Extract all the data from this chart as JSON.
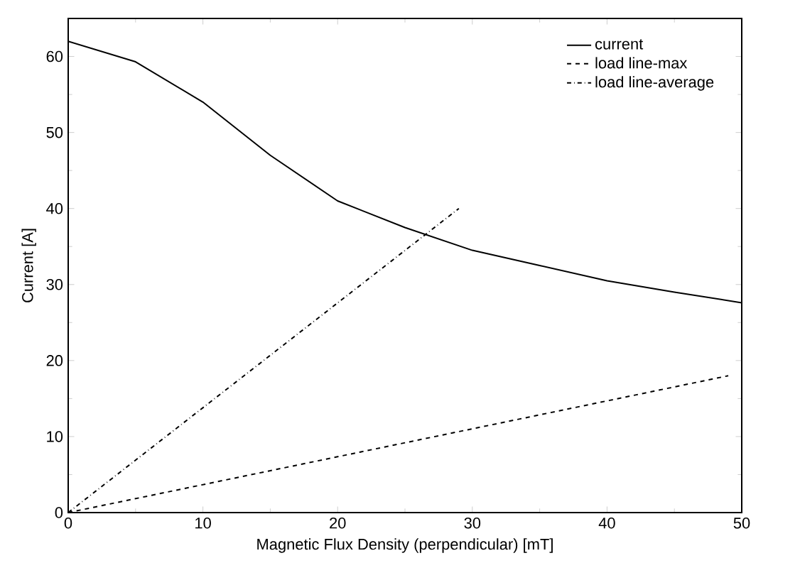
{
  "chart_data": {
    "type": "line",
    "xlabel": "Magnetic Flux Density (perpendicular) [mT]",
    "ylabel": "Current [A]",
    "xlim": [
      0,
      50
    ],
    "ylim": [
      0,
      65
    ],
    "xticks": [
      0,
      10,
      20,
      30,
      40,
      50
    ],
    "yticks": [
      0,
      10,
      20,
      30,
      40,
      50,
      60
    ],
    "legend": "top right",
    "grid": false,
    "marker": "none",
    "series": [
      {
        "name": "current",
        "color": "#000000",
        "line_style": "solid",
        "x": [
          0,
          5,
          10,
          15,
          20,
          25,
          30,
          35,
          40,
          45,
          50
        ],
        "values": [
          62,
          59.3,
          54,
          47,
          41,
          37.5,
          34.5,
          32.5,
          30.5,
          29,
          27.6
        ]
      },
      {
        "name": "load line-max",
        "color": "#000000",
        "line_style": "dashed",
        "x": [
          0,
          49
        ],
        "values": [
          0,
          18
        ]
      },
      {
        "name": "load line-average",
        "color": "#000000",
        "line_style": "dotted",
        "x": [
          0,
          29
        ],
        "values": [
          0,
          40
        ]
      }
    ]
  }
}
